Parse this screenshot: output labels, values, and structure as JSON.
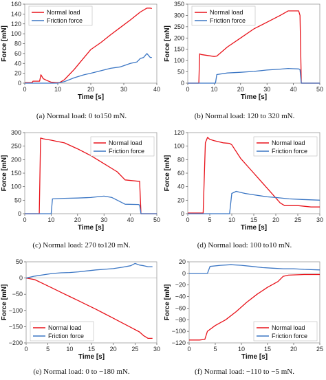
{
  "colors": {
    "normal": "#e8121a",
    "friction": "#3b76c4",
    "axis": "#b0b0b0",
    "frame": "#9a9a9a"
  },
  "chart_data": [
    {
      "type": "line",
      "caption": "(a) Normal load: 0 to150 mN.",
      "xlabel": "Time  [s]",
      "ylabel": "Force  [mN]",
      "xlim": [
        0,
        40
      ],
      "ylim": [
        0,
        160
      ],
      "xticks": [
        0,
        10,
        20,
        30,
        40
      ],
      "yticks": [
        0,
        20,
        40,
        60,
        80,
        100,
        120,
        140,
        160
      ],
      "xtick_labels": [
        "0",
        "10",
        "20",
        "30",
        "40"
      ],
      "ytick_labels": [
        "0",
        "20",
        "40",
        "60",
        "80",
        "100",
        "120",
        "140",
        "160"
      ],
      "legend_position": "top-left",
      "series": [
        {
          "name": "Normal load",
          "x": [
            0,
            2.2,
            2.5,
            4.5,
            4.9,
            5.6,
            6.5,
            8,
            9.5,
            10.5,
            12,
            15,
            18,
            20,
            23,
            26,
            29,
            32,
            35,
            37,
            38,
            38.5
          ],
          "y": [
            1,
            1,
            4,
            4,
            17,
            9,
            6,
            2,
            1,
            1,
            7,
            28,
            52,
            68,
            82,
            98,
            113,
            128,
            144,
            152,
            152,
            151
          ]
        },
        {
          "name": "Friction force",
          "x": [
            0,
            5,
            10,
            12,
            15,
            18,
            20,
            23,
            26,
            29,
            32,
            34,
            35,
            36,
            37,
            38,
            38.5
          ],
          "y": [
            0,
            0,
            0,
            3,
            11,
            17,
            20,
            25,
            30,
            33,
            40,
            43,
            50,
            52,
            60,
            52,
            52
          ]
        }
      ]
    },
    {
      "type": "line",
      "caption": "(b) Normal load: 120 to 320 mN.",
      "xlabel": "Time  [s]",
      "ylabel": "Force  [mN]",
      "xlim": [
        0,
        50
      ],
      "ylim": [
        0,
        350
      ],
      "xticks": [
        0,
        10,
        20,
        30,
        40,
        50
      ],
      "yticks": [
        0,
        50,
        100,
        150,
        200,
        250,
        300,
        350
      ],
      "xtick_labels": [
        "0",
        "10",
        "20",
        "30",
        "40",
        "50"
      ],
      "ytick_labels": [
        "0",
        "50",
        "100",
        "150",
        "200",
        "250",
        "300",
        "350"
      ],
      "legend_position": "top-left",
      "series": [
        {
          "name": "Normal load",
          "x": [
            0,
            4.2,
            4.5,
            5,
            10,
            11,
            15,
            20,
            25,
            30,
            35,
            38,
            42,
            42.5,
            43,
            50
          ],
          "y": [
            0,
            0,
            130,
            127,
            118,
            120,
            160,
            200,
            240,
            270,
            300,
            320,
            320,
            300,
            0,
            0
          ]
        },
        {
          "name": "Friction force",
          "x": [
            0,
            10.5,
            11,
            15,
            20,
            25,
            30,
            35,
            38,
            40,
            42,
            42.5,
            43,
            50
          ],
          "y": [
            0,
            0,
            38,
            45,
            48,
            52,
            58,
            62,
            65,
            64,
            63,
            60,
            0,
            0
          ]
        }
      ]
    },
    {
      "type": "line",
      "caption": "(c) Normal load: 270 to120 mN.",
      "xlabel": "Time  [s]",
      "ylabel": "Force  [mN]",
      "xlim": [
        0,
        50
      ],
      "ylim": [
        0,
        300
      ],
      "xticks": [
        0,
        10,
        20,
        30,
        40,
        50
      ],
      "yticks": [
        0,
        50,
        100,
        150,
        200,
        250,
        300
      ],
      "xtick_labels": [
        "0",
        "10",
        "20",
        "30",
        "40",
        "50"
      ],
      "ytick_labels": [
        "0",
        "50",
        "100",
        "150",
        "200",
        "250",
        "300"
      ],
      "legend_position": "top-right",
      "series": [
        {
          "name": "Normal load",
          "x": [
            0,
            5.5,
            6,
            7,
            10,
            12,
            15,
            20,
            25,
            30,
            35,
            38,
            43,
            43.5,
            44,
            50
          ],
          "y": [
            0,
            0,
            280,
            277,
            272,
            268,
            262,
            240,
            215,
            185,
            155,
            125,
            120,
            120,
            0,
            0
          ]
        },
        {
          "name": "Friction force",
          "x": [
            0,
            10,
            10.5,
            15,
            20,
            25,
            30,
            33,
            35,
            38,
            43,
            43.5,
            44,
            50
          ],
          "y": [
            0,
            0,
            55,
            57,
            58,
            60,
            65,
            60,
            50,
            35,
            34,
            32,
            0,
            0
          ]
        }
      ]
    },
    {
      "type": "line",
      "caption": "(d) Normal load: 100 to10 mN.",
      "xlabel": "Time  [s]",
      "ylabel": "Force  [mN]",
      "xlim": [
        0,
        30
      ],
      "ylim": [
        0,
        120
      ],
      "xticks": [
        0,
        5,
        10,
        15,
        20,
        25,
        30
      ],
      "yticks": [
        0,
        20,
        40,
        60,
        80,
        100,
        120
      ],
      "xtick_labels": [
        "0",
        "5",
        "10",
        "15",
        "20",
        "25",
        "30"
      ],
      "ytick_labels": [
        "0",
        "20",
        "40",
        "60",
        "80",
        "100",
        "120"
      ],
      "legend_position": "top-right",
      "series": [
        {
          "name": "Normal load",
          "x": [
            0,
            3.5,
            4,
            4.5,
            5,
            6,
            8,
            9.5,
            10,
            12,
            15,
            18,
            21,
            22,
            25,
            28,
            30
          ],
          "y": [
            1,
            1,
            105,
            113,
            110,
            108,
            105,
            104,
            102,
            82,
            60,
            38,
            16,
            12,
            12,
            10,
            10
          ]
        },
        {
          "name": "Friction force",
          "x": [
            0,
            9.5,
            10,
            11,
            13,
            15,
            18,
            20,
            23,
            26,
            30
          ],
          "y": [
            0,
            0,
            30,
            33,
            30,
            28,
            25,
            24,
            22,
            21,
            20
          ]
        }
      ]
    },
    {
      "type": "line",
      "caption": "(e) Normal load: 0 to −180 mN.",
      "xlabel": "Time  [s]",
      "ylabel": "Force  [mN]",
      "xlim": [
        0,
        30
      ],
      "ylim": [
        -200,
        50
      ],
      "xticks": [
        0,
        5,
        10,
        15,
        20,
        25,
        30
      ],
      "yticks": [
        -200,
        -150,
        -100,
        -50,
        0,
        50
      ],
      "xtick_labels": [
        "0",
        "5",
        "10",
        "15",
        "20",
        "25",
        "30"
      ],
      "ytick_labels": [
        "−200",
        "−150",
        "−100",
        "−50",
        "0",
        "50"
      ],
      "legend_position": "bottom-left",
      "series": [
        {
          "name": "Normal load",
          "x": [
            0,
            2,
            4,
            6,
            8,
            10,
            12,
            14,
            16,
            18,
            20,
            22,
            24,
            26,
            27,
            28,
            29
          ],
          "y": [
            0,
            -5,
            -18,
            -31,
            -44,
            -57,
            -70,
            -83,
            -96,
            -110,
            -124,
            -138,
            -152,
            -166,
            -178,
            -186,
            -186
          ]
        },
        {
          "name": "Friction force",
          "x": [
            0,
            2,
            4,
            6,
            8,
            10,
            12,
            14,
            16,
            18,
            20,
            22,
            24,
            25,
            26,
            27,
            28,
            29
          ],
          "y": [
            0,
            6,
            10,
            14,
            16,
            17,
            19,
            22,
            25,
            27,
            29,
            33,
            38,
            45,
            40,
            38,
            35,
            35
          ]
        }
      ]
    },
    {
      "type": "line",
      "caption": "(f) Normal load: −110 to −5 mN.",
      "xlabel": "Time  [s]",
      "ylabel": "Force  [mN]",
      "xlim": [
        0,
        25
      ],
      "ylim": [
        -120,
        20
      ],
      "xticks": [
        0,
        5,
        10,
        15,
        20,
        25
      ],
      "yticks": [
        -120,
        -100,
        -80,
        -60,
        -40,
        -20,
        0,
        20
      ],
      "xtick_labels": [
        "0",
        "5",
        "10",
        "15",
        "20",
        "25"
      ],
      "ytick_labels": [
        "−120",
        "−100",
        "−80",
        "−60",
        "−40",
        "−20",
        "0",
        "20"
      ],
      "legend_position": "bottom-right",
      "series": [
        {
          "name": "Normal load",
          "x": [
            0,
            2,
            3,
            3.5,
            5,
            7,
            9,
            11,
            13,
            15,
            17,
            18,
            19,
            22,
            25
          ],
          "y": [
            -115,
            -115,
            -114,
            -100,
            -90,
            -80,
            -66,
            -50,
            -36,
            -24,
            -14,
            -5,
            -3,
            -2,
            -2
          ]
        },
        {
          "name": "Friction force",
          "x": [
            0,
            3.5,
            4,
            6,
            8,
            10,
            12,
            14,
            16,
            18,
            20,
            22,
            25
          ],
          "y": [
            0,
            0,
            12,
            14,
            15,
            14,
            12,
            10,
            9,
            8,
            8,
            7,
            6
          ]
        }
      ]
    }
  ]
}
